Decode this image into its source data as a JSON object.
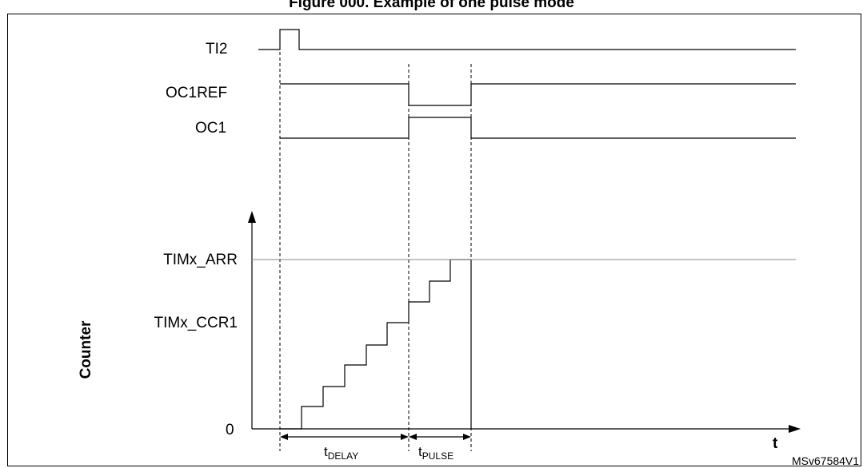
{
  "figure": {
    "title": "Figure 000. Example of one pulse mode",
    "signals": [
      "TI2",
      "OC1REF",
      "OC1"
    ],
    "counter_axis_label": "Counter",
    "counter_levels": [
      "TIMx_ARR",
      "TIMx_CCR1",
      "0"
    ],
    "time_axis_label": "t",
    "intervals": {
      "delay": {
        "base": "t",
        "sub": "DELAY"
      },
      "pulse": {
        "base": "t",
        "sub": "PULSE"
      }
    },
    "reference": "MSv67584V1"
  }
}
